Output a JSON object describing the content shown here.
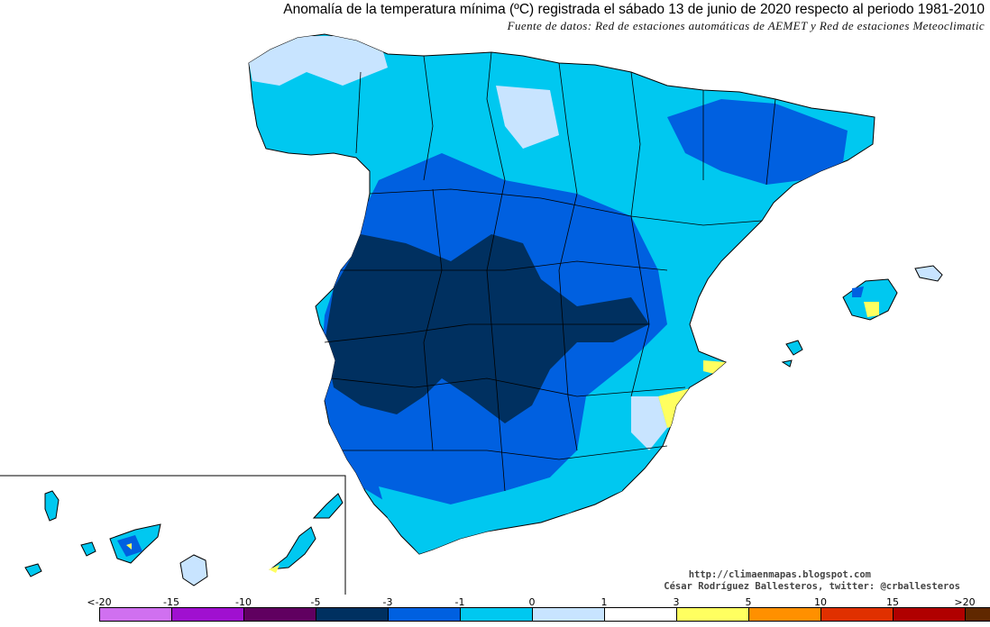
{
  "title": "Anomalía de la temperatura mínima (ºC) registrada el sábado 13 de junio de 2020 respecto al periodo 1981-2010",
  "source": "Fuente de datos: Red de estaciones automáticas de AEMET y Red de estaciones Meteoclimatic",
  "credits": {
    "url": "http://climaenmapas.blogspot.com",
    "author": "César Rodríguez Ballesteros, twitter: @crballesteros"
  },
  "legend": {
    "labels": [
      "<-20",
      "-15",
      "-10",
      "-5",
      "-3",
      "-1",
      "0",
      "1",
      "3",
      "5",
      "10",
      "15",
      ">20"
    ],
    "colors": [
      "#d070f0",
      "#a010d0",
      "#600060",
      "#003060",
      "#0060e0",
      "#00c8f0",
      "#c8e4ff",
      "#ffffff",
      "#ffff60",
      "#ff9000",
      "#e03000",
      "#b00000",
      "#602800"
    ]
  },
  "colors": {
    "very_dark_blue": "#003060",
    "dark_blue": "#0060e0",
    "cyan": "#00c8f0",
    "light_blue": "#c8e4ff",
    "yellow": "#ffff60",
    "border": "#000000"
  }
}
